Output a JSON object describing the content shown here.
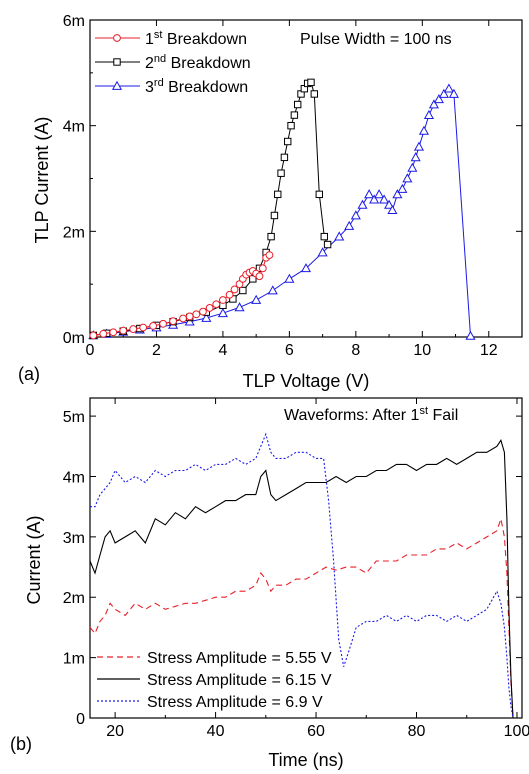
{
  "chart_data": [
    {
      "panel_label": "(a)",
      "type": "line",
      "xlabel": "TLP Voltage (V)",
      "ylabel": "TLP Current (A)",
      "xlim": [
        0,
        13
      ],
      "ylim": [
        0,
        0.006
      ],
      "x_ticks": [
        0,
        2,
        4,
        6,
        8,
        10,
        12
      ],
      "x_tick_labels": [
        "0",
        "2",
        "4",
        "6",
        "8",
        "10",
        "12"
      ],
      "y_ticks": [
        0,
        0.002,
        0.004,
        0.006
      ],
      "y_tick_labels": [
        "0m",
        "2m",
        "4m",
        "6m"
      ],
      "annotation": "Pulse Width = 100 ns",
      "legend_position": "top-left",
      "series": [
        {
          "name": "1st Breakdown",
          "name_base": "1",
          "name_sup": "st",
          "name_rest": " Breakdown",
          "color": "#e8202a",
          "marker": "circle",
          "x": [
            0.1,
            0.4,
            0.7,
            1.0,
            1.3,
            1.6,
            1.9,
            2.2,
            2.5,
            2.8,
            3.0,
            3.2,
            3.4,
            3.6,
            3.8,
            4.0,
            4.2,
            4.35,
            4.5,
            4.6,
            4.7,
            4.8,
            4.9,
            5.0,
            5.1,
            5.2,
            5.3,
            5.4
          ],
          "y": [
            3e-05,
            6e-05,
            9e-05,
            0.00012,
            0.00015,
            0.00018,
            0.00021,
            0.00025,
            0.0003,
            0.00035,
            0.00039,
            0.00043,
            0.00048,
            0.00055,
            0.00062,
            0.0007,
            0.0008,
            0.0009,
            0.001,
            0.0011,
            0.00118,
            0.00122,
            0.00125,
            0.0012,
            0.00115,
            0.0013,
            0.0015,
            0.00155
          ]
        },
        {
          "name": "2nd Breakdown",
          "name_base": "2",
          "name_sup": "nd",
          "name_rest": " Breakdown",
          "color": "#000000",
          "marker": "square",
          "x": [
            0.1,
            0.5,
            1.0,
            1.5,
            2.0,
            2.5,
            3.0,
            3.5,
            4.0,
            4.3,
            4.6,
            4.9,
            5.1,
            5.3,
            5.45,
            5.55,
            5.65,
            5.75,
            5.85,
            5.95,
            6.05,
            6.15,
            6.25,
            6.35,
            6.45,
            6.55,
            6.65,
            6.75,
            6.9,
            7.05,
            7.15
          ],
          "y": [
            3e-05,
            7e-05,
            0.00011,
            0.00016,
            0.00022,
            0.00029,
            0.00037,
            0.00047,
            0.0006,
            0.00072,
            0.00088,
            0.0011,
            0.0013,
            0.0016,
            0.0019,
            0.0023,
            0.0027,
            0.0031,
            0.0034,
            0.0037,
            0.004,
            0.0042,
            0.0044,
            0.0046,
            0.0047,
            0.0048,
            0.00482,
            0.0046,
            0.0027,
            0.0019,
            0.00175
          ]
        },
        {
          "name": "3rd Breakdown",
          "name_base": "3",
          "name_sup": "rd",
          "name_rest": " Breakdown",
          "color": "#1a1ae6",
          "marker": "triangle",
          "x": [
            0.1,
            0.5,
            1.0,
            1.5,
            2.0,
            2.5,
            3.0,
            3.5,
            4.0,
            4.5,
            5.0,
            5.5,
            6.0,
            6.5,
            7.0,
            7.5,
            7.8,
            8.0,
            8.2,
            8.4,
            8.55,
            8.7,
            8.85,
            9.0,
            9.1,
            9.25,
            9.4,
            9.55,
            9.7,
            9.8,
            9.9,
            10.05,
            10.2,
            10.35,
            10.5,
            10.65,
            10.8,
            10.95,
            11.45
          ],
          "y": [
            3e-05,
            6e-05,
            0.0001,
            0.00014,
            0.00018,
            0.00023,
            0.00029,
            0.00036,
            0.00045,
            0.00056,
            0.0007,
            0.00088,
            0.0011,
            0.0013,
            0.0016,
            0.0019,
            0.0021,
            0.0023,
            0.0025,
            0.0027,
            0.0026,
            0.0027,
            0.0026,
            0.0025,
            0.0024,
            0.0027,
            0.0028,
            0.003,
            0.0032,
            0.0034,
            0.0036,
            0.0039,
            0.0042,
            0.0044,
            0.0045,
            0.0046,
            0.0047,
            0.0046,
            2e-05
          ]
        }
      ]
    },
    {
      "panel_label": "(b)",
      "type": "line",
      "xlabel": "Time (ns)",
      "ylabel": "Current (A)",
      "xlim": [
        15,
        101
      ],
      "ylim": [
        0,
        0.0053
      ],
      "x_ticks": [
        20,
        40,
        60,
        80,
        100
      ],
      "x_tick_labels": [
        "20",
        "40",
        "60",
        "80",
        "100"
      ],
      "y_ticks": [
        0,
        0.001,
        0.002,
        0.003,
        0.004,
        0.005
      ],
      "y_tick_labels": [
        "0",
        "1m",
        "2m",
        "3m",
        "4m",
        "5m"
      ],
      "annotation_base": "Waveforms: After 1",
      "annotation_sup": "st",
      "annotation_rest": " Fail",
      "legend_position": "bottom-left",
      "series": [
        {
          "name": "Stress Amplitude = 5.55 V",
          "color": "#e8202a",
          "dash": "dashed",
          "x": [
            15,
            16,
            17,
            18,
            19,
            20,
            22,
            24,
            26,
            28,
            30,
            32,
            34,
            36,
            38,
            40,
            42,
            44,
            46,
            48,
            49,
            50,
            51,
            52,
            54,
            56,
            58,
            60,
            62,
            64,
            66,
            68,
            70,
            72,
            74,
            76,
            78,
            80,
            82,
            84,
            86,
            88,
            90,
            92,
            94,
            96,
            96.8,
            97.5,
            98,
            98.4,
            98.8,
            99.2
          ],
          "y": [
            0.0015,
            0.0014,
            0.0016,
            0.0017,
            0.0019,
            0.0018,
            0.0017,
            0.0019,
            0.0018,
            0.0019,
            0.0018,
            0.00185,
            0.0019,
            0.0019,
            0.00195,
            0.002,
            0.002,
            0.0021,
            0.0021,
            0.0022,
            0.0024,
            0.0023,
            0.0021,
            0.0022,
            0.0022,
            0.0023,
            0.0023,
            0.0024,
            0.0025,
            0.00245,
            0.0025,
            0.0025,
            0.0024,
            0.0026,
            0.0026,
            0.0026,
            0.0027,
            0.0027,
            0.0027,
            0.0028,
            0.0028,
            0.0029,
            0.0028,
            0.0029,
            0.003,
            0.0031,
            0.0033,
            0.003,
            0.0024,
            0.0015,
            0.0006,
            0.0
          ]
        },
        {
          "name": "Stress Amplitude = 6.15 V",
          "color": "#000000",
          "dash": "solid",
          "x": [
            15,
            16,
            17,
            18,
            19,
            20,
            22,
            24,
            26,
            28,
            30,
            32,
            34,
            36,
            38,
            40,
            42,
            44,
            46,
            48,
            49,
            50,
            51,
            52,
            54,
            56,
            58,
            60,
            62,
            64,
            66,
            68,
            70,
            72,
            74,
            76,
            78,
            80,
            82,
            84,
            86,
            88,
            90,
            92,
            94,
            96,
            96.8,
            97.5,
            98,
            98.4,
            98.8,
            99.2
          ],
          "y": [
            0.0026,
            0.0024,
            0.0027,
            0.003,
            0.0031,
            0.0029,
            0.003,
            0.0031,
            0.0029,
            0.0033,
            0.0032,
            0.0034,
            0.0033,
            0.0035,
            0.0034,
            0.0035,
            0.0036,
            0.0036,
            0.0037,
            0.0037,
            0.004,
            0.0041,
            0.0037,
            0.0036,
            0.0037,
            0.0038,
            0.0039,
            0.0039,
            0.0039,
            0.004,
            0.0039,
            0.004,
            0.004,
            0.0041,
            0.0041,
            0.0042,
            0.0042,
            0.0041,
            0.0042,
            0.0042,
            0.0043,
            0.0042,
            0.0043,
            0.0044,
            0.0044,
            0.0045,
            0.0046,
            0.0044,
            0.0033,
            0.0018,
            0.0007,
            0.0
          ]
        },
        {
          "name": "Stress Amplitude = 6.9 V",
          "color": "#1a1ae6",
          "dash": "dotted",
          "x": [
            15,
            16,
            17,
            18,
            19,
            20,
            22,
            24,
            26,
            28,
            30,
            32,
            34,
            36,
            38,
            40,
            42,
            44,
            46,
            48,
            49,
            50,
            51,
            52,
            54,
            56,
            58,
            60,
            61.5,
            62.5,
            63.5,
            64.5,
            65.5,
            66.5,
            68,
            70,
            72,
            74,
            76,
            78,
            80,
            82,
            84,
            86,
            88,
            90,
            92,
            94,
            96,
            96.8,
            97.5,
            98,
            98.4,
            98.8,
            99.2
          ],
          "y": [
            0.0035,
            0.0035,
            0.0037,
            0.0038,
            0.0039,
            0.0041,
            0.0039,
            0.004,
            0.0039,
            0.0041,
            0.004,
            0.0041,
            0.0041,
            0.0042,
            0.0041,
            0.0042,
            0.0042,
            0.0043,
            0.0042,
            0.0043,
            0.0045,
            0.0047,
            0.0044,
            0.0043,
            0.0043,
            0.0044,
            0.0044,
            0.0043,
            0.0043,
            0.0036,
            0.0026,
            0.0013,
            0.00085,
            0.0011,
            0.0015,
            0.0016,
            0.0016,
            0.0017,
            0.0016,
            0.0017,
            0.0016,
            0.0017,
            0.0017,
            0.0016,
            0.0017,
            0.0016,
            0.0017,
            0.0018,
            0.0021,
            0.0019,
            0.0015,
            0.001,
            0.0005,
            0.0002,
            0.0
          ]
        }
      ]
    }
  ]
}
